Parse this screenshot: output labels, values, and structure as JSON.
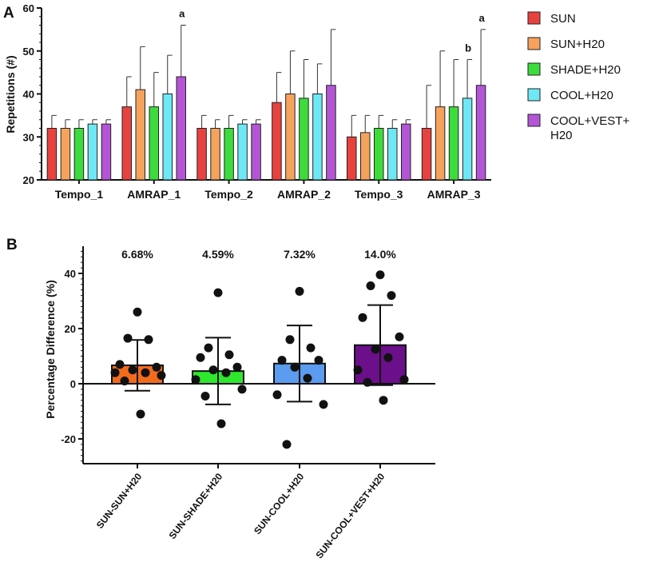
{
  "chart_data": [
    {
      "panel": "A",
      "type": "bar",
      "ylabel": "Repetitions (#)",
      "ylim": [
        20,
        60
      ],
      "yticks": [
        20,
        30,
        40,
        50,
        60
      ],
      "categories": [
        "Tempo_1",
        "AMRAP_1",
        "Tempo_2",
        "AMRAP_2",
        "Tempo_3",
        "AMRAP_3"
      ],
      "series": [
        {
          "name": "SUN",
          "color": "#e8423f",
          "values": [
            32,
            37,
            32,
            38,
            30,
            32
          ],
          "err_upper": [
            35,
            44,
            35,
            45,
            35,
            42
          ]
        },
        {
          "name": "SUN+H20",
          "color": "#f5a25d",
          "values": [
            32,
            41,
            32,
            40,
            31,
            37
          ],
          "err_upper": [
            34,
            51,
            34,
            50,
            35,
            50
          ]
        },
        {
          "name": "SHADE+H20",
          "color": "#3ddc3d",
          "values": [
            32,
            37,
            32,
            39,
            32,
            37
          ],
          "err_upper": [
            34,
            45,
            35,
            48,
            35,
            48
          ]
        },
        {
          "name": "COOL+H20",
          "color": "#6ee8f5",
          "values": [
            33,
            40,
            33,
            40,
            32,
            39
          ],
          "err_upper": [
            34,
            49,
            34,
            47,
            34,
            48
          ]
        },
        {
          "name": "COOL+VEST+H20",
          "color": "#b455d6",
          "values": [
            33,
            44,
            33,
            42,
            33,
            42
          ],
          "err_upper": [
            34,
            56,
            34,
            55,
            34,
            55
          ]
        }
      ],
      "annotations": [
        {
          "text": "a",
          "category": "AMRAP_1",
          "series": "COOL+VEST+H20"
        },
        {
          "text": "b",
          "category": "AMRAP_3",
          "series": "COOL+H20"
        },
        {
          "text": "a",
          "category": "AMRAP_3",
          "series": "COOL+VEST+H20"
        }
      ]
    },
    {
      "panel": "B",
      "type": "bar",
      "ylabel": "Percentage  Difference (%)",
      "ylim": [
        -30,
        50
      ],
      "yticks": [
        -20,
        0,
        20,
        40
      ],
      "categories": [
        "SUN-SUN+H20",
        "SUN-SHADE+H20",
        "SUN-COOL+H20",
        "SUN-COOL+VEST+H20"
      ],
      "bar_colors": [
        "#f26b1d",
        "#2ee82e",
        "#5b9bf0",
        "#6b0f8a"
      ],
      "means": [
        6.68,
        4.59,
        7.32,
        14.0
      ],
      "mean_labels": [
        "6.68%",
        "4.59%",
        "7.32%",
        "14.0%"
      ],
      "sd": [
        9.2,
        12.1,
        13.8,
        14.5
      ],
      "points": [
        [
          26,
          16.5,
          16,
          7,
          6,
          5,
          4,
          4,
          3,
          1,
          -11
        ],
        [
          33,
          13,
          10.5,
          9.5,
          6,
          5,
          4,
          1.5,
          -2,
          -4.5,
          -14.5
        ],
        [
          33.5,
          16,
          13,
          8.5,
          8.5,
          6,
          2,
          -4,
          -7.5,
          -22
        ],
        [
          39.5,
          35.5,
          32,
          24,
          17,
          12.5,
          9.5,
          5,
          1.5,
          0.5,
          -6
        ]
      ]
    }
  ]
}
